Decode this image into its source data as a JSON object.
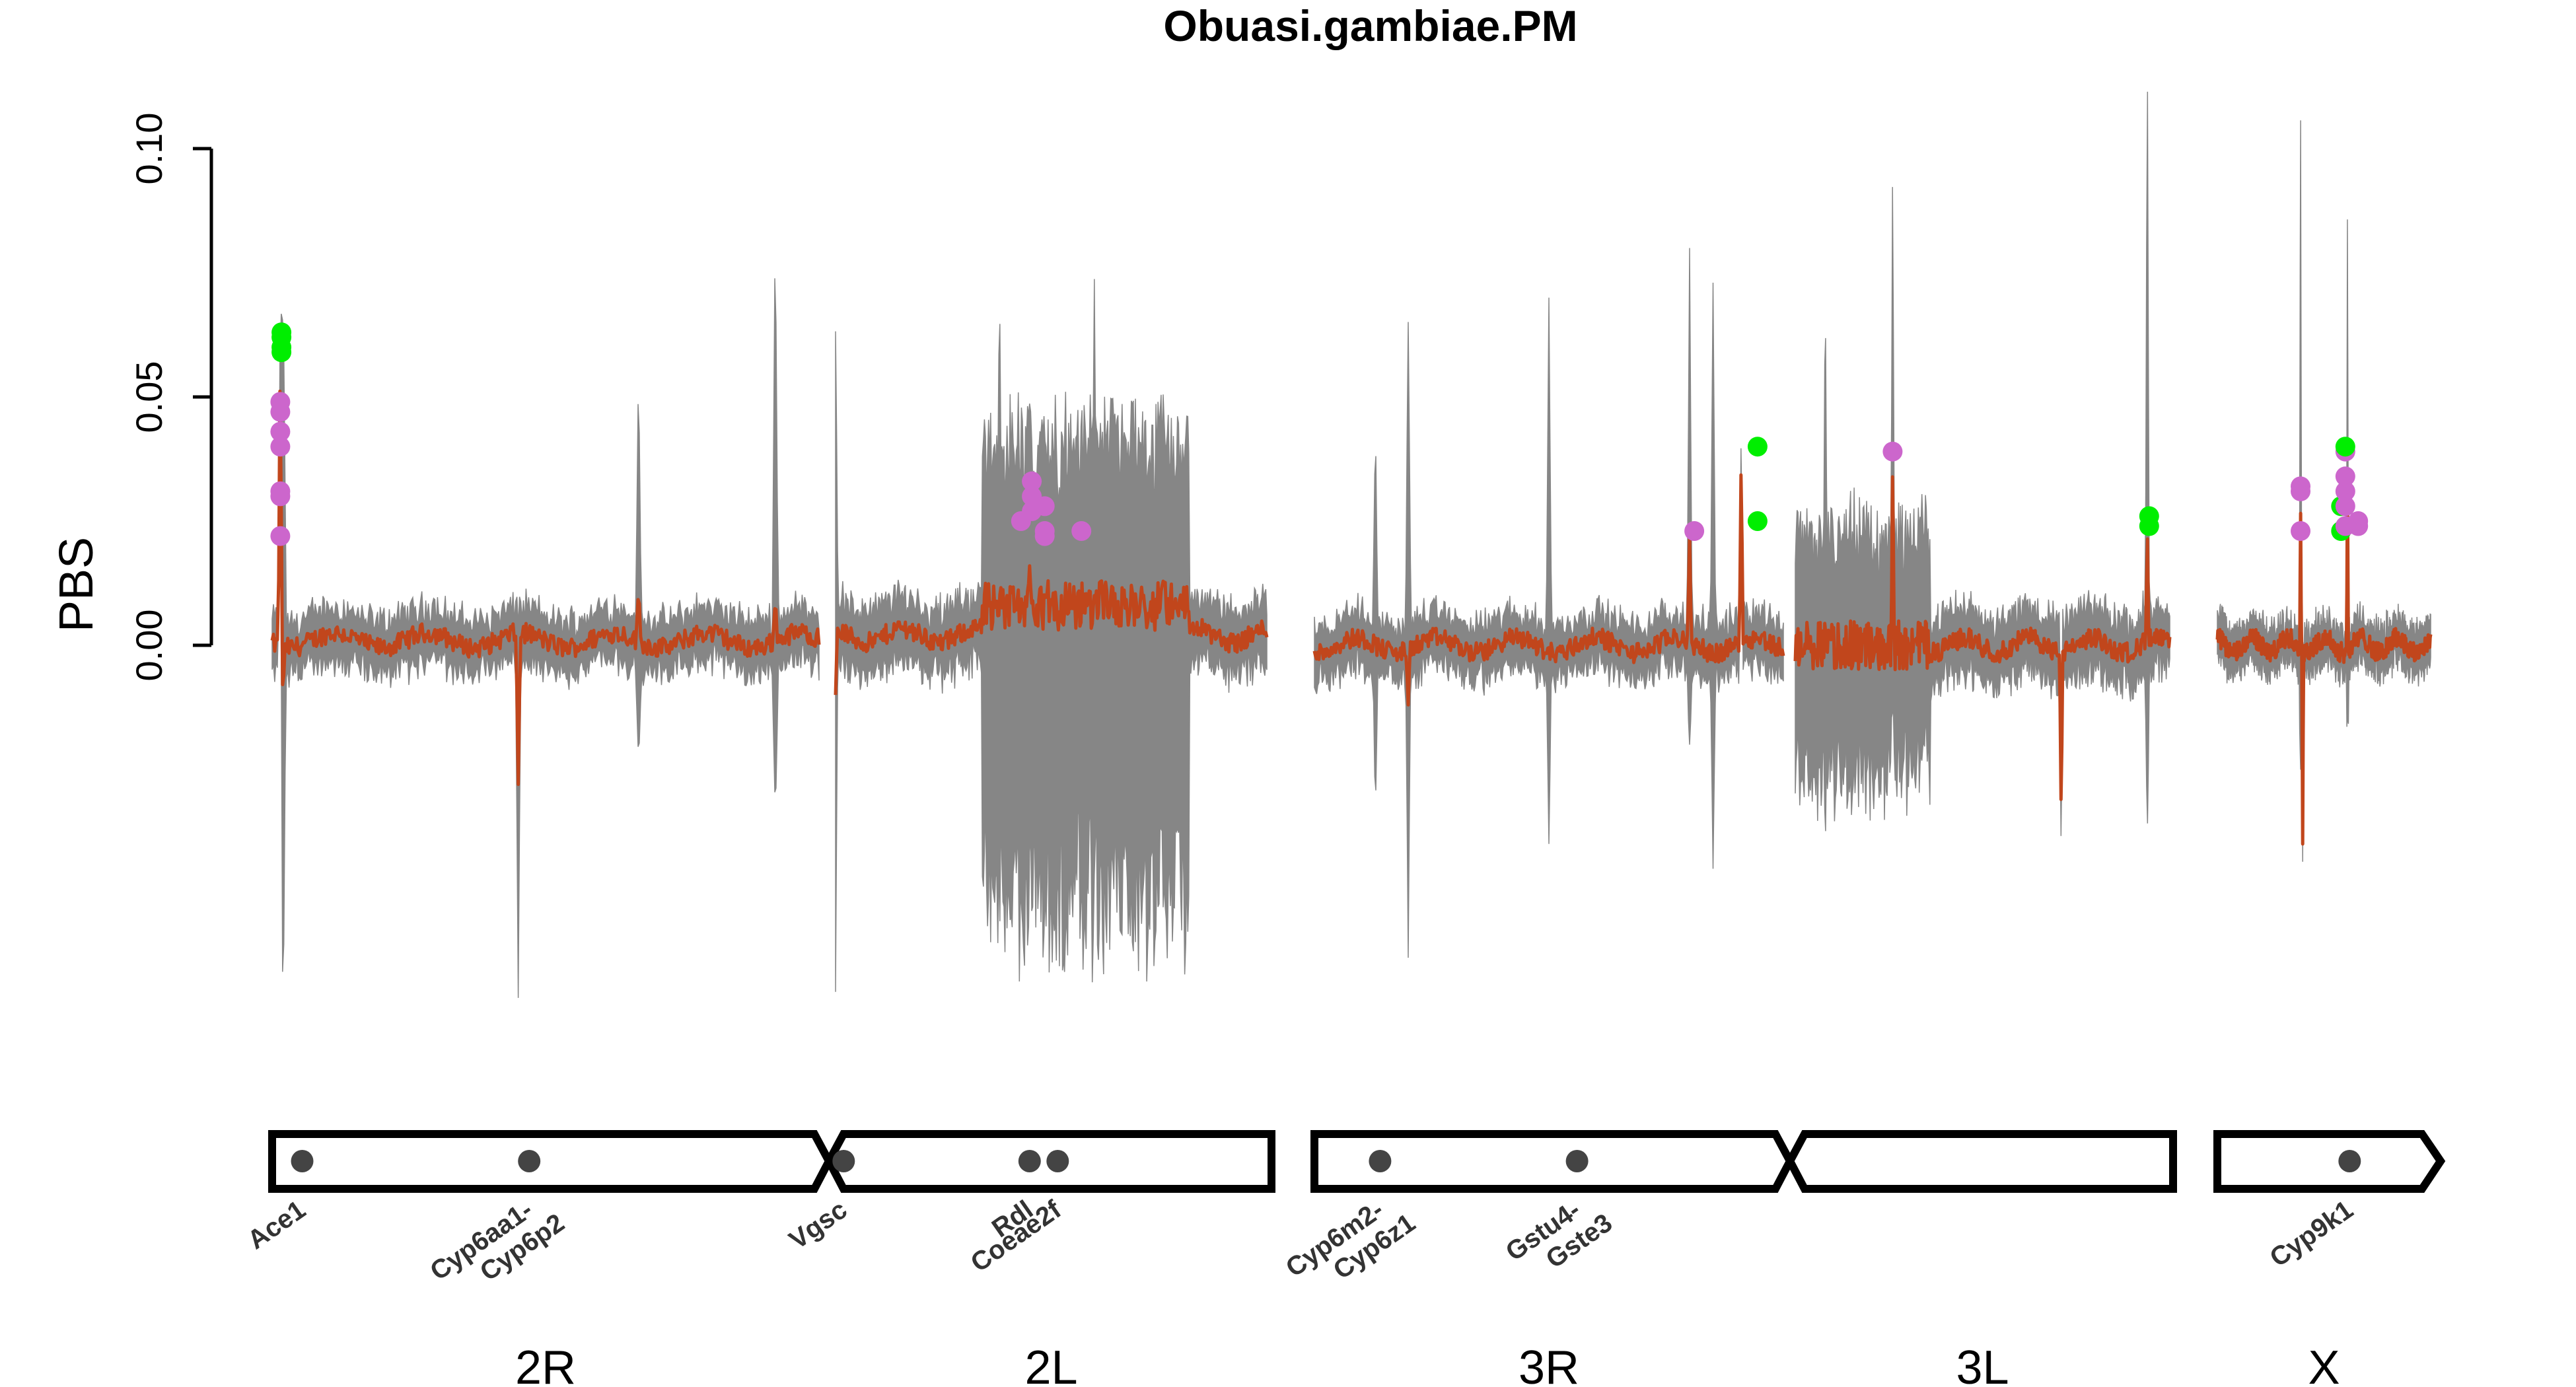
{
  "chart_data": {
    "type": "line",
    "title": "Obuasi.gambiae.PM",
    "ylabel": "PBS",
    "xlabel": "",
    "ylim": [
      -0.09,
      0.105
    ],
    "yticks": [
      {
        "value": 0.0,
        "label": "0.00"
      },
      {
        "value": 0.05,
        "label": "0.05"
      },
      {
        "value": 0.1,
        "label": "0.10"
      }
    ],
    "grid": false,
    "legend": "none",
    "colors": {
      "line": "#c1461c",
      "band": "#808080",
      "point_magenta": "#cc66cc",
      "point_green": "#00ee00",
      "gene_marker": "#444444",
      "ideogram": "#000000"
    },
    "chromosomes": [
      {
        "name": "2R",
        "label": "2R"
      },
      {
        "name": "2L",
        "label": "2L"
      },
      {
        "name": "3R",
        "label": "3R"
      },
      {
        "name": "3L",
        "label": "3L"
      },
      {
        "name": "X",
        "label": "X"
      }
    ],
    "series": [
      {
        "chromosome": "2R",
        "baseline": 0.001,
        "band": 0.005,
        "spikes": [
          {
            "at": 0.015,
            "value": 0.062
          },
          {
            "at": 0.02,
            "value": -0.01
          },
          {
            "at": 0.45,
            "value": -0.028
          },
          {
            "at": 0.67,
            "value": 0.012
          },
          {
            "at": 0.92,
            "value": 0.01
          }
        ],
        "band_spikes": [
          {
            "at": 0.02,
            "up": 0.086,
            "down": -0.07
          },
          {
            "at": 0.45,
            "up": 0.035,
            "down": -0.04
          },
          {
            "at": 0.67,
            "up": 0.047,
            "down": -0.035
          },
          {
            "at": 0.92,
            "up": 0.078,
            "down": -0.045
          }
        ]
      },
      {
        "chromosome": "2L",
        "baseline": 0.002,
        "band": 0.006,
        "spikes": [
          {
            "at": 0.0,
            "value": -0.01
          },
          {
            "at": 0.45,
            "value": 0.016
          },
          {
            "at": 0.6,
            "value": 0.01
          }
        ],
        "band_spikes": [
          {
            "at": 0.0,
            "up": 0.078,
            "down": -0.055
          },
          {
            "at": 0.38,
            "up": 0.075,
            "down": -0.06
          },
          {
            "at": 0.6,
            "up": 0.07,
            "down": -0.05
          }
        ],
        "wide_region": {
          "from": 0.34,
          "to": 0.82,
          "center": 0.008,
          "up": 0.032,
          "down": -0.058
        }
      },
      {
        "chromosome": "3R",
        "baseline": 0.0,
        "band": 0.005,
        "spikes": [
          {
            "at": 0.2,
            "value": -0.012
          },
          {
            "at": 0.8,
            "value": 0.022
          },
          {
            "at": 0.91,
            "value": 0.039
          }
        ],
        "band_spikes": [
          {
            "at": 0.13,
            "up": 0.045,
            "down": -0.035
          },
          {
            "at": 0.2,
            "up": 0.078,
            "down": -0.05
          },
          {
            "at": 0.5,
            "up": 0.07,
            "down": -0.04
          },
          {
            "at": 0.8,
            "up": 0.06,
            "down": -0.04
          },
          {
            "at": 0.85,
            "up": 0.073,
            "down": -0.045
          }
        ]
      },
      {
        "chromosome": "3L",
        "baseline": 0.0,
        "band": 0.006,
        "spikes": [
          {
            "at": 0.26,
            "value": 0.038
          },
          {
            "at": 0.71,
            "value": -0.035
          },
          {
            "at": 0.94,
            "value": 0.024
          }
        ],
        "band_spikes": [
          {
            "at": 0.08,
            "up": 0.073,
            "down": -0.045
          },
          {
            "at": 0.26,
            "up": 0.067,
            "down": -0.048
          },
          {
            "at": 0.94,
            "up": 0.1,
            "down": -0.06
          }
        ],
        "wide_region": {
          "from": 0.0,
          "to": 0.36,
          "center": 0.0,
          "up": 0.022,
          "down": -0.025
        }
      },
      {
        "chromosome": "X",
        "baseline": 0.0,
        "band": 0.004,
        "spikes": [
          {
            "at": 0.39,
            "value": 0.03
          },
          {
            "at": 0.4,
            "value": -0.04
          },
          {
            "at": 0.61,
            "value": 0.038
          }
        ],
        "band_spikes": [
          {
            "at": 0.39,
            "up": 0.087,
            "down": -0.055
          },
          {
            "at": 0.61,
            "up": 0.055,
            "down": -0.052
          }
        ]
      }
    ],
    "highlight_points": [
      {
        "chromosome": "2R",
        "at": 0.015,
        "values": [
          0.022,
          0.03,
          0.031,
          0.04,
          0.043,
          0.047,
          0.049
        ],
        "color": "point_magenta"
      },
      {
        "chromosome": "2R",
        "at": 0.017,
        "values": [
          0.059,
          0.06,
          0.062,
          0.063
        ],
        "color": "point_green"
      },
      {
        "chromosome": "2L",
        "at": 0.43,
        "values": [
          0.025
        ],
        "color": "point_magenta"
      },
      {
        "chromosome": "2L",
        "at": 0.455,
        "values": [
          0.027,
          0.03,
          0.033
        ],
        "color": "point_magenta"
      },
      {
        "chromosome": "2L",
        "at": 0.485,
        "values": [
          0.022,
          0.023,
          0.028
        ],
        "color": "point_magenta"
      },
      {
        "chromosome": "2L",
        "at": 0.57,
        "values": [
          0.023
        ],
        "color": "point_magenta"
      },
      {
        "chromosome": "3R",
        "at": 0.81,
        "values": [
          0.023
        ],
        "color": "point_magenta"
      },
      {
        "chromosome": "3R",
        "at": 0.945,
        "values": [
          0.025,
          0.04
        ],
        "color": "point_green"
      },
      {
        "chromosome": "3L",
        "at": 0.26,
        "values": [
          0.039
        ],
        "color": "point_magenta"
      },
      {
        "chromosome": "3L",
        "at": 0.945,
        "values": [
          0.024,
          0.026
        ],
        "color": "point_green"
      },
      {
        "chromosome": "X",
        "at": 0.39,
        "values": [
          0.023,
          0.031,
          0.032
        ],
        "color": "point_magenta"
      },
      {
        "chromosome": "X",
        "at": 0.58,
        "values": [
          0.023,
          0.028
        ],
        "color": "point_green"
      },
      {
        "chromosome": "X",
        "at": 0.6,
        "values": [
          0.024,
          0.028,
          0.031,
          0.034,
          0.039
        ],
        "color": "point_magenta"
      },
      {
        "chromosome": "X",
        "at": 0.6,
        "values": [
          0.04
        ],
        "color": "point_green"
      },
      {
        "chromosome": "X",
        "at": 0.66,
        "values": [
          0.024,
          0.025
        ],
        "color": "point_magenta"
      }
    ],
    "genes": [
      {
        "chromosome": "2R",
        "at": 0.055,
        "lines": [
          "Ace1"
        ]
      },
      {
        "chromosome": "2R",
        "at": 0.47,
        "lines": [
          "Cyp6aa1-",
          "Cyp6p2"
        ]
      },
      {
        "chromosome": "2R",
        "at": 1.045,
        "lines": [
          "Vgsc"
        ]
      },
      {
        "chromosome": "2L",
        "at": 0.45,
        "lines": [
          "Rdl"
        ]
      },
      {
        "chromosome": "2L",
        "at": 0.515,
        "lines": [
          "Coeae2f"
        ]
      },
      {
        "chromosome": "3R",
        "at": 0.14,
        "lines": [
          "Cyp6m2-",
          "Cyp6z1"
        ]
      },
      {
        "chromosome": "3R",
        "at": 0.56,
        "lines": [
          "Gstu4-",
          "Gste3"
        ]
      },
      {
        "chromosome": "X",
        "at": 0.62,
        "lines": [
          "Cyp9k1"
        ]
      }
    ]
  }
}
